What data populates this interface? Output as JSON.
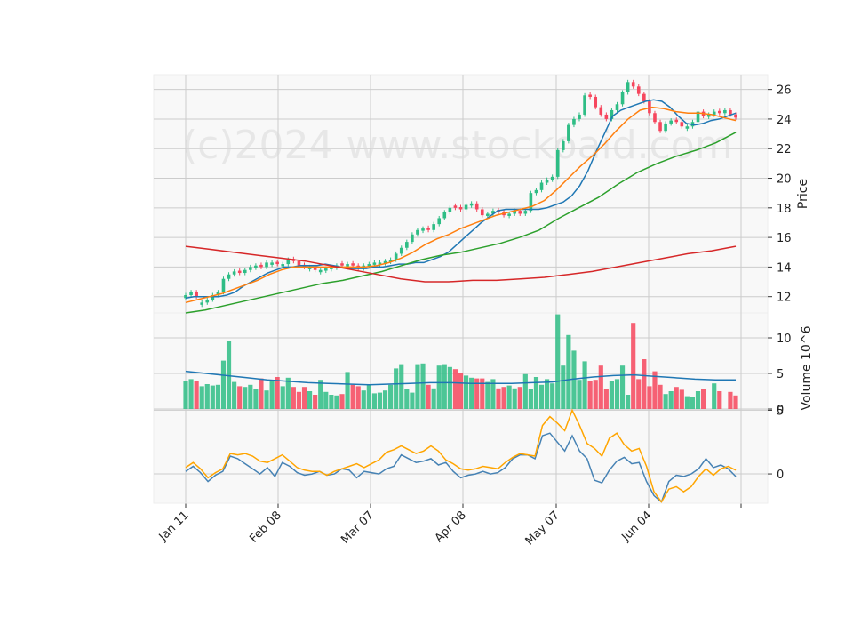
{
  "watermark": "(c)2024 www.stockoaid.com",
  "chart_data": {
    "type": "candlestick",
    "x_tick_labels": [
      "Jan 11",
      "Feb 08",
      "Mar 07",
      "Apr 08",
      "May 07",
      "Jun 04"
    ],
    "price_panel": {
      "ylabel": "Price",
      "yticks": [
        12,
        14,
        16,
        18,
        20,
        22,
        24,
        26
      ],
      "ylim": [
        10.9,
        27.0
      ],
      "candles_close": [
        12.1,
        12.3,
        12.0,
        11.6,
        11.8,
        12.1,
        12.3,
        13.2,
        13.5,
        13.7,
        13.6,
        13.8,
        14.0,
        14.1,
        14.0,
        14.3,
        14.3,
        14.2,
        14.2,
        14.5,
        14.4,
        14.1,
        14.0,
        14.0,
        13.8,
        13.8,
        13.9,
        14.0,
        14.1,
        14.1,
        14.2,
        14.1,
        13.9,
        14.1,
        14.2,
        14.3,
        14.3,
        14.4,
        14.5,
        14.9,
        15.3,
        15.7,
        16.2,
        16.5,
        16.6,
        16.5,
        16.9,
        17.3,
        17.7,
        18.0,
        18.0,
        17.9,
        18.2,
        18.3,
        17.9,
        17.5,
        17.6,
        17.8,
        17.7,
        17.5,
        17.6,
        17.8,
        17.6,
        17.8,
        19.0,
        19.2,
        19.7,
        19.9,
        20.1,
        21.9,
        22.5,
        23.6,
        24.0,
        24.3,
        25.6,
        25.5,
        24.8,
        24.3,
        24.0,
        24.6,
        25.0,
        25.8,
        26.5,
        26.2,
        25.7,
        25.2,
        24.4,
        23.8,
        23.2,
        23.7,
        23.9,
        23.8,
        23.5,
        23.5,
        23.8,
        24.5,
        24.2,
        24.3,
        24.5,
        24.4,
        24.6,
        24.3,
        24.1
      ],
      "candles_up": [
        true,
        true,
        false,
        true,
        true,
        true,
        true,
        true,
        true,
        true,
        false,
        true,
        true,
        true,
        false,
        true,
        true,
        false,
        true,
        true,
        false,
        false,
        false,
        true,
        false,
        true,
        true,
        true,
        true,
        false,
        true,
        false,
        false,
        true,
        true,
        true,
        true,
        true,
        true,
        true,
        true,
        true,
        true,
        true,
        true,
        false,
        true,
        true,
        true,
        true,
        false,
        false,
        true,
        true,
        false,
        false,
        true,
        true,
        false,
        false,
        true,
        true,
        false,
        true,
        true,
        true,
        true,
        true,
        true,
        true,
        true,
        true,
        true,
        true,
        true,
        false,
        false,
        false,
        false,
        true,
        true,
        true,
        true,
        false,
        false,
        false,
        false,
        false,
        false,
        true,
        true,
        false,
        false,
        true,
        true,
        true,
        false,
        true,
        true,
        false,
        true,
        false,
        false
      ],
      "series": [
        {
          "name": "MA short",
          "color": "#1f77b4",
          "values": [
            11.9,
            12.0,
            12.0,
            12.0,
            12.0,
            12.1,
            12.3,
            12.7,
            13.0,
            13.3,
            13.6,
            13.8,
            14.0,
            14.0,
            14.1,
            14.1,
            14.1,
            14.2,
            14.1,
            14.0,
            13.9,
            13.9,
            13.9,
            14.0,
            14.0,
            14.1,
            14.2,
            14.2,
            14.3,
            14.3,
            14.5,
            14.7,
            15.0,
            15.5,
            16.0,
            16.5,
            17.0,
            17.4,
            17.8,
            17.9,
            17.9,
            17.9,
            17.9,
            17.9,
            18.0,
            18.2,
            18.4,
            18.8,
            19.5,
            20.5,
            21.8,
            23.0,
            24.2,
            24.6,
            24.8,
            25.0,
            25.2,
            25.3,
            25.2,
            24.8,
            24.2,
            23.7,
            23.6,
            23.7,
            23.9,
            24.0,
            24.2,
            24.4
          ]
        },
        {
          "name": "MA mid",
          "color": "#ff7f0e",
          "values": [
            11.6,
            11.8,
            12.0,
            12.2,
            12.5,
            12.8,
            13.1,
            13.5,
            13.8,
            14.0,
            14.0,
            14.0,
            14.0,
            14.0,
            14.0,
            14.0,
            14.1,
            14.3,
            14.6,
            15.0,
            15.5,
            15.9,
            16.2,
            16.6,
            16.9,
            17.2,
            17.5,
            17.7,
            17.9,
            18.1,
            18.5,
            19.2,
            20.0,
            20.8,
            21.5,
            22.3,
            23.2,
            24.0,
            24.6,
            24.8,
            24.7,
            24.5,
            24.4,
            24.4,
            24.3,
            24.1,
            23.9
          ]
        },
        {
          "name": "MA long",
          "color": "#2ca02c",
          "values": [
            10.9,
            11.1,
            11.4,
            11.7,
            12.0,
            12.3,
            12.6,
            12.9,
            13.1,
            13.4,
            13.7,
            14.1,
            14.5,
            14.8,
            15.0,
            15.3,
            15.6,
            16.0,
            16.5,
            17.3,
            18.0,
            18.7,
            19.6,
            20.4,
            21.0,
            21.5,
            21.9,
            22.4,
            23.1
          ]
        },
        {
          "name": "MA very long",
          "color": "#d62728",
          "values": [
            15.4,
            15.2,
            15.0,
            14.8,
            14.6,
            14.4,
            14.1,
            13.8,
            13.5,
            13.2,
            13.0,
            13.0,
            13.1,
            13.1,
            13.2,
            13.3,
            13.5,
            13.7,
            14.0,
            14.3,
            14.6,
            14.9,
            15.1,
            15.4
          ]
        }
      ]
    },
    "volume_panel": {
      "ylabel": "Volume  10^6",
      "yticks": [
        0,
        5,
        10
      ],
      "ylim": [
        0,
        13.5
      ],
      "values": [
        3.9,
        4.2,
        3.9,
        3.2,
        3.5,
        3.3,
        3.4,
        6.8,
        9.5,
        3.8,
        3.2,
        3.1,
        3.4,
        2.8,
        4.3,
        2.6,
        3.9,
        4.5,
        3.2,
        4.4,
        3.1,
        2.4,
        3.1,
        2.5,
        2.0,
        4.1,
        2.4,
        2.0,
        1.9,
        2.1,
        5.2,
        3.4,
        3.2,
        2.6,
        3.5,
        2.2,
        2.3,
        2.6,
        3.4,
        5.7,
        6.3,
        2.8,
        2.3,
        6.3,
        6.4,
        3.4,
        2.9,
        6.1,
        6.3,
        5.9,
        5.6,
        5.0,
        4.7,
        4.4,
        4.3,
        4.3,
        3.8,
        4.2,
        2.9,
        3.1,
        3.3,
        2.9,
        3.1,
        4.9,
        2.8,
        4.5,
        3.4,
        4.2,
        3.6,
        13.3,
        6.1,
        10.4,
        8.2,
        4.1,
        6.7,
        3.9,
        4.1,
        6.1,
        2.8,
        3.9,
        4.2,
        6.1,
        2.0,
        12.1,
        4.2,
        7.0,
        3.2,
        5.3,
        3.4,
        2.1,
        2.5,
        3.1,
        2.7,
        1.8,
        1.7,
        2.5,
        2.8,
        0.0,
        3.6,
        2.5,
        0.0,
        2.4,
        1.9
      ],
      "ma": {
        "name": "Volume MA",
        "color": "#1f77b4",
        "values": [
          5.3,
          5.0,
          4.7,
          4.4,
          4.1,
          3.9,
          3.7,
          3.6,
          3.5,
          3.4,
          3.5,
          3.6,
          3.7,
          3.7,
          3.6,
          3.6,
          3.6,
          3.7,
          3.8,
          4.2,
          4.5,
          4.7,
          4.8,
          4.6,
          4.4,
          4.2,
          4.1,
          4.1
        ]
      }
    },
    "macd_panel": {
      "yticks": [
        0,
        5
      ],
      "ylim": [
        -2.3,
        5.1
      ],
      "series": [
        {
          "name": "MACD",
          "color": "#4682b4",
          "values": [
            0.2,
            0.6,
            0.1,
            -0.6,
            -0.1,
            0.2,
            1.4,
            1.2,
            0.8,
            0.4,
            0.0,
            0.5,
            -0.2,
            0.9,
            0.6,
            0.1,
            -0.1,
            0.0,
            0.2,
            -0.1,
            0.0,
            0.4,
            0.3,
            -0.3,
            0.2,
            0.1,
            0.0,
            0.4,
            0.6,
            1.5,
            1.2,
            0.9,
            1.0,
            1.2,
            0.7,
            0.9,
            0.2,
            -0.3,
            -0.1,
            0.0,
            0.2,
            0.0,
            0.1,
            0.5,
            1.2,
            1.5,
            1.5,
            1.2,
            3.0,
            3.2,
            2.5,
            1.8,
            3.0,
            1.8,
            1.2,
            -0.5,
            -0.7,
            0.3,
            1.0,
            1.3,
            0.8,
            0.9,
            -0.6,
            -1.7,
            -2.2,
            -0.6,
            -0.1,
            -0.2,
            0.0,
            0.4,
            1.2,
            0.5,
            0.7,
            0.4,
            -0.2
          ]
        },
        {
          "name": "Signal",
          "color": "#ffa500",
          "values": [
            0.5,
            0.9,
            0.4,
            -0.3,
            0.1,
            0.4,
            1.6,
            1.5,
            1.6,
            1.4,
            1.0,
            0.9,
            1.2,
            1.5,
            1.0,
            0.5,
            0.3,
            0.2,
            0.2,
            -0.1,
            0.2,
            0.4,
            0.6,
            0.8,
            0.5,
            0.8,
            1.1,
            1.7,
            1.9,
            2.2,
            1.9,
            1.6,
            1.8,
            2.2,
            1.8,
            1.1,
            0.8,
            0.4,
            0.3,
            0.4,
            0.6,
            0.5,
            0.4,
            0.9,
            1.3,
            1.6,
            1.5,
            1.4,
            3.8,
            4.5,
            4.0,
            3.4,
            5.0,
            3.8,
            2.4,
            2.0,
            1.4,
            2.8,
            3.2,
            2.3,
            1.8,
            2.0,
            0.6,
            -1.4,
            -2.2,
            -1.2,
            -1.0,
            -1.4,
            -1.0,
            -0.2,
            0.4,
            -0.1,
            0.4,
            0.6,
            0.3
          ]
        }
      ]
    },
    "grid": true
  }
}
